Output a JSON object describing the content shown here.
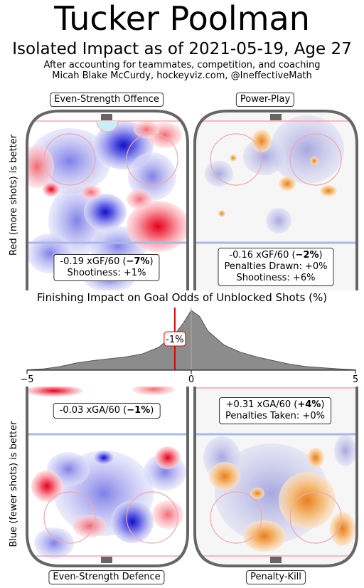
{
  "title": "Tucker Poolman",
  "subtitle": "Isolated Impact as of 2021-05-19, Age 27",
  "credit_line1": "After accounting for teammates, competition, and coaching",
  "credit_line2": "Micah Blake McCurdy, hockeyviz.com, @IneffectiveMath",
  "side_labels": {
    "top": "Red (more shots) is better",
    "bottom": "Blue (fewer shots) is better"
  },
  "panels": {
    "ev_offence": {
      "title": "Even-Strength Offence",
      "stat_value": "-0.19 xGF/60 (",
      "stat_pct": "−7%",
      "stat_close": ")",
      "line2": "Shootiness: +1%"
    },
    "power_play": {
      "title": "Power-Play",
      "stat_value": "-0.16 xGF/60 (",
      "stat_pct": "−2%",
      "stat_close": ")",
      "line2": "Penalties Drawn: +0%",
      "line3": "Shootiness: +6%"
    },
    "ev_defence": {
      "title": "Even-Strength Defence",
      "stat_value": "-0.03 xGA/60 (",
      "stat_pct": "−1%",
      "stat_close": ")"
    },
    "penalty_kill": {
      "title": "Penalty-Kill",
      "stat_value": "+0.31 xGA/60 (",
      "stat_pct": "+4%",
      "stat_close": ")",
      "line2": "Penalties Taken: +0%"
    }
  },
  "colors": {
    "more_shots": "#e8373c",
    "fewer_shots": "#2323d6",
    "pp_more": "#e8902a",
    "pk_lavender": "#b8b8e6",
    "rink_board": "#666666",
    "blue_line": "#a8b8e8",
    "red_line": "#f0a8b0",
    "marker": "#e00000",
    "density_fill": "#8c8c8c"
  },
  "chart_data": {
    "type": "area",
    "title": "Finishing Impact on Goal Odds of Unblocked Shots (%)",
    "xlim": [
      -5,
      5
    ],
    "x_ticks": [
      "−5",
      "0",
      "5"
    ],
    "x": [
      -5.0,
      -4.5,
      -4.0,
      -3.5,
      -3.0,
      -2.5,
      -2.0,
      -1.5,
      -1.0,
      -0.5,
      -0.25,
      0.0,
      0.25,
      0.5,
      1.0,
      1.5,
      2.0,
      2.5,
      3.0,
      3.5,
      4.0,
      4.5,
      5.0
    ],
    "y": [
      0.005,
      0.02,
      0.06,
      0.12,
      0.16,
      0.19,
      0.22,
      0.27,
      0.38,
      0.6,
      0.78,
      1.0,
      0.9,
      0.66,
      0.42,
      0.3,
      0.22,
      0.16,
      0.1,
      0.06,
      0.04,
      0.02,
      0.005
    ],
    "marker": {
      "x": -0.5,
      "label": "-1%"
    },
    "zero_line": 0
  }
}
